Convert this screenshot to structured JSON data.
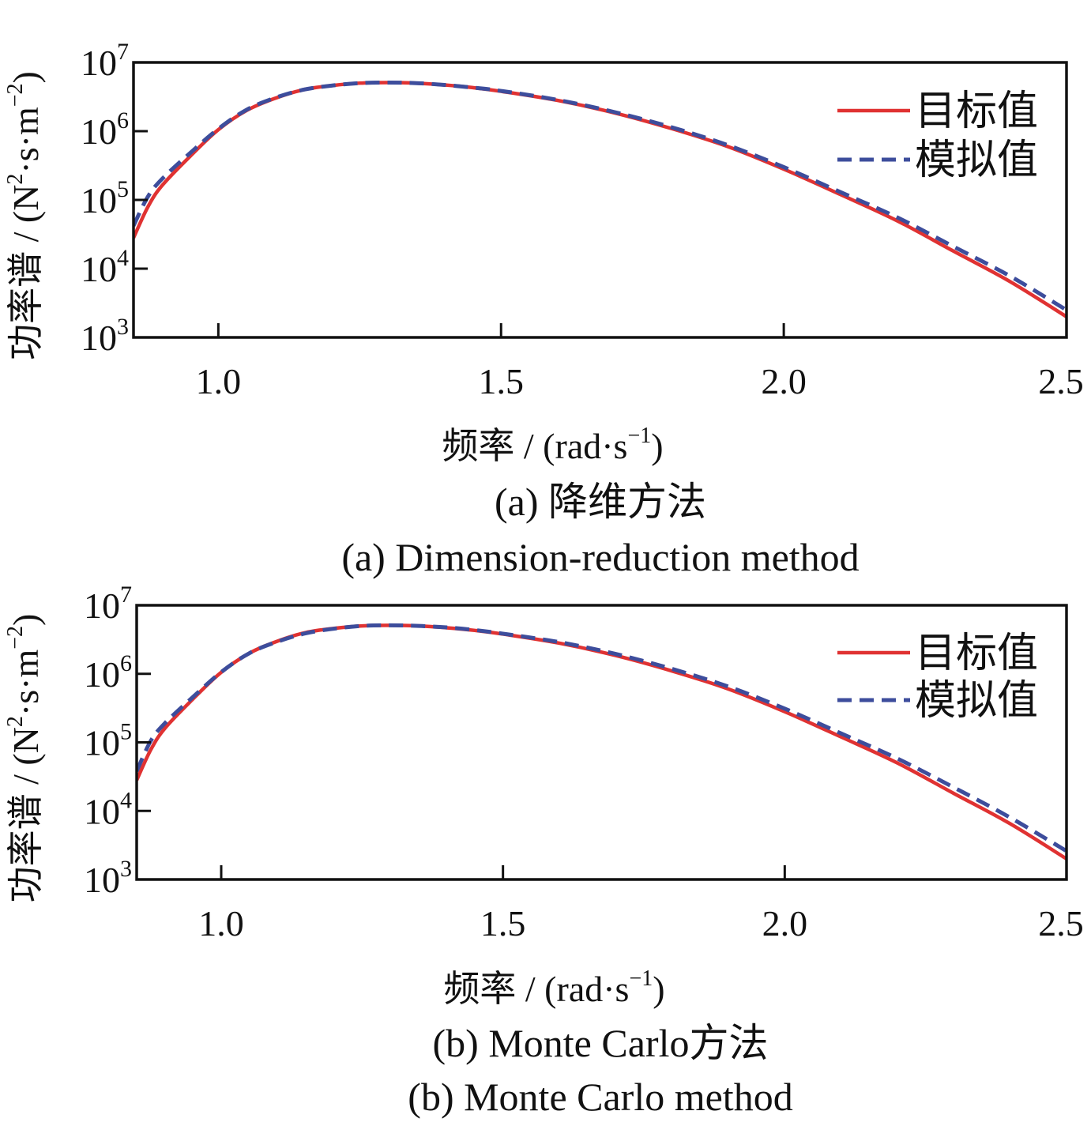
{
  "chart_data": [
    {
      "type": "line",
      "xlabel": "频率 / (rad·s",
      "xlabel_sup": "−1",
      "xlabel_tail": ")",
      "ylabel": "功率谱 / (N",
      "ylabel_sup1": "2",
      "ylabel_mid": "·s·m",
      "ylabel_sup2": "−2",
      "ylabel_tail": ")",
      "xlim": [
        0.85,
        2.5
      ],
      "ylim": [
        1000,
        10000000
      ],
      "yscale": "log",
      "x_ticks": [
        {
          "value": 1.0,
          "label": "1.0"
        },
        {
          "value": 1.5,
          "label": "1.5"
        },
        {
          "value": 2.0,
          "label": "2.0"
        },
        {
          "value": 2.5,
          "label": "2.5"
        }
      ],
      "y_ticks": [
        {
          "value": 1000,
          "base": "10",
          "exp": "3"
        },
        {
          "value": 10000,
          "base": "10",
          "exp": "4"
        },
        {
          "value": 100000,
          "base": "10",
          "exp": "5"
        },
        {
          "value": 1000000,
          "base": "10",
          "exp": "6"
        },
        {
          "value": 10000000,
          "base": "10",
          "exp": "7"
        }
      ],
      "legend_position": "top-right",
      "caption_cn": "(a) 降维方法",
      "caption_en": "(a) Dimension-reduction method",
      "series": [
        {
          "name": "目标值",
          "color": "#e03232",
          "style": "solid",
          "x": [
            0.85,
            0.875,
            0.9,
            0.95,
            1.0,
            1.05,
            1.1,
            1.15,
            1.2,
            1.25,
            1.3,
            1.35,
            1.4,
            1.45,
            1.5,
            1.6,
            1.7,
            1.8,
            1.9,
            2.0,
            2.1,
            2.2,
            2.3,
            2.4,
            2.5
          ],
          "y": [
            28000,
            78000,
            160000,
            430000,
            1050000,
            2000000,
            3000000,
            4000000,
            4600000,
            5000000,
            5100000,
            5000000,
            4700000,
            4300000,
            3800000,
            2800000,
            1850000,
            1100000,
            600000,
            280000,
            120000,
            50000,
            18000,
            6500,
            2000
          ]
        },
        {
          "name": "模拟值",
          "color": "#3d4d9c",
          "style": "dashed",
          "x": [
            0.85,
            0.875,
            0.9,
            0.95,
            1.0,
            1.05,
            1.1,
            1.15,
            1.2,
            1.25,
            1.3,
            1.35,
            1.4,
            1.45,
            1.5,
            1.6,
            1.7,
            1.8,
            1.9,
            2.0,
            2.1,
            2.2,
            2.3,
            2.4,
            2.5
          ],
          "y": [
            42000,
            110000,
            200000,
            480000,
            1080000,
            2050000,
            3050000,
            4000000,
            4600000,
            5000000,
            5100000,
            5000000,
            4700000,
            4300000,
            3850000,
            2850000,
            1900000,
            1150000,
            630000,
            300000,
            130000,
            56000,
            21000,
            7800,
            2500
          ]
        }
      ]
    },
    {
      "type": "line",
      "xlabel": "频率 / (rad·s",
      "xlabel_sup": "−1",
      "xlabel_tail": ")",
      "ylabel": "功率谱 / (N",
      "ylabel_sup1": "2",
      "ylabel_mid": "·s·m",
      "ylabel_sup2": "−2",
      "ylabel_tail": ")",
      "xlim": [
        0.85,
        2.5
      ],
      "ylim": [
        1000,
        10000000
      ],
      "yscale": "log",
      "x_ticks": [
        {
          "value": 1.0,
          "label": "1.0"
        },
        {
          "value": 1.5,
          "label": "1.5"
        },
        {
          "value": 2.0,
          "label": "2.0"
        },
        {
          "value": 2.5,
          "label": "2.5"
        }
      ],
      "y_ticks": [
        {
          "value": 1000,
          "base": "10",
          "exp": "3"
        },
        {
          "value": 10000,
          "base": "10",
          "exp": "4"
        },
        {
          "value": 100000,
          "base": "10",
          "exp": "5"
        },
        {
          "value": 1000000,
          "base": "10",
          "exp": "6"
        },
        {
          "value": 10000000,
          "base": "10",
          "exp": "7"
        }
      ],
      "legend_position": "top-right",
      "caption_cn": "(b) Monte Carlo方法",
      "caption_en": "(b) Monte Carlo method",
      "series": [
        {
          "name": "目标值",
          "color": "#e03232",
          "style": "solid",
          "x": [
            0.85,
            0.875,
            0.9,
            0.95,
            1.0,
            1.05,
            1.1,
            1.15,
            1.2,
            1.25,
            1.3,
            1.35,
            1.4,
            1.45,
            1.5,
            1.6,
            1.7,
            1.8,
            1.9,
            2.0,
            2.1,
            2.2,
            2.3,
            2.4,
            2.5
          ],
          "y": [
            28000,
            78000,
            160000,
            430000,
            1050000,
            2000000,
            3000000,
            4000000,
            4600000,
            5000000,
            5100000,
            5000000,
            4700000,
            4300000,
            3800000,
            2800000,
            1850000,
            1100000,
            600000,
            280000,
            120000,
            50000,
            18000,
            6500,
            2000
          ]
        },
        {
          "name": "模拟值",
          "color": "#3d4d9c",
          "style": "dashed",
          "x": [
            0.85,
            0.875,
            0.9,
            0.95,
            1.0,
            1.05,
            1.1,
            1.15,
            1.2,
            1.25,
            1.3,
            1.35,
            1.4,
            1.45,
            1.5,
            1.6,
            1.7,
            1.8,
            1.9,
            2.0,
            2.1,
            2.2,
            2.3,
            2.4,
            2.5
          ],
          "y": [
            38000,
            105000,
            190000,
            460000,
            1060000,
            2000000,
            2950000,
            3900000,
            4550000,
            5000000,
            5100000,
            5000000,
            4750000,
            4350000,
            3850000,
            2900000,
            1950000,
            1180000,
            650000,
            310000,
            135000,
            58000,
            22000,
            8000,
            2600
          ]
        }
      ]
    }
  ]
}
